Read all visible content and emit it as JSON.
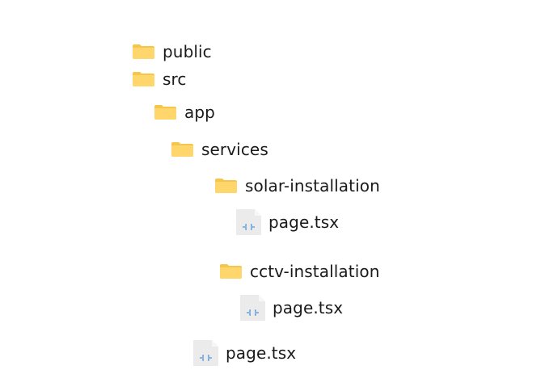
{
  "tree": {
    "nodes": [
      {
        "id": "public",
        "kind": "folder",
        "icon": "folder-icon",
        "label": "public"
      },
      {
        "id": "src",
        "kind": "folder",
        "icon": "folder-icon",
        "label": "src"
      },
      {
        "id": "app",
        "kind": "folder",
        "icon": "folder-icon",
        "label": "app"
      },
      {
        "id": "services",
        "kind": "folder",
        "icon": "folder-icon",
        "label": "services"
      },
      {
        "id": "solar-installation",
        "kind": "folder",
        "icon": "folder-icon",
        "label": "solar-installation"
      },
      {
        "id": "solar-page",
        "kind": "file",
        "icon": "code-file-icon",
        "label": "page.tsx"
      },
      {
        "id": "cctv-installation",
        "kind": "folder",
        "icon": "folder-icon",
        "label": "cctv-installation"
      },
      {
        "id": "cctv-page",
        "kind": "file",
        "icon": "code-file-icon",
        "label": "page.tsx"
      },
      {
        "id": "app-page",
        "kind": "file",
        "icon": "code-file-icon",
        "label": "page.tsx"
      }
    ]
  },
  "colors": {
    "folder": "#FFD66B",
    "folder_tab": "#F5C64A",
    "file_page": "#EBEBEB",
    "file_fold": "#F7F7F7",
    "file_glyph": "#4A90D9",
    "text": "#1A1A1A"
  }
}
